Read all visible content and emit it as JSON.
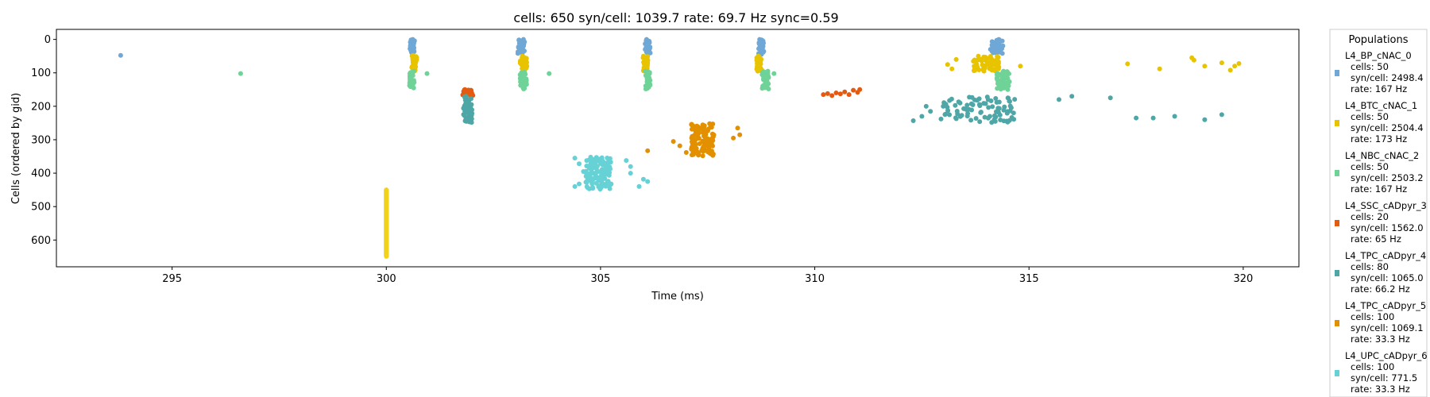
{
  "chart_data": {
    "type": "scatter",
    "title": "cells: 650   syn/cell: 1039.7   rate: 69.7 Hz    sync=0.59",
    "xlabel": "Time (ms)",
    "ylabel": "Cells (ordered by gid)",
    "xlim": [
      292.3,
      321.3
    ],
    "ylim": [
      680,
      -30
    ],
    "y_inverted": true,
    "xticks": [
      295,
      300,
      305,
      310,
      315,
      320
    ],
    "yticks": [
      0,
      100,
      200,
      300,
      400,
      500,
      600
    ],
    "grid": false,
    "legend": {
      "title": "Populations",
      "placement": "outside-right"
    },
    "series": [
      {
        "name": "L4_BP_cNAC_0",
        "color": "#6fa8d6",
        "gid_range": [
          0,
          49
        ],
        "stats": [
          "cells: 50",
          "syn/cell: 2498.4",
          "rate: 167 Hz"
        ],
        "clusters": [
          {
            "t": 300.6,
            "dt": 0.06,
            "y0": 0,
            "y1": 40,
            "n": 30
          },
          {
            "t": 303.15,
            "dt": 0.08,
            "y0": 0,
            "y1": 42,
            "n": 34
          },
          {
            "t": 306.1,
            "dt": 0.06,
            "y0": 0,
            "y1": 42,
            "n": 32
          },
          {
            "t": 308.75,
            "dt": 0.06,
            "y0": 0,
            "y1": 45,
            "n": 30
          },
          {
            "t": 314.25,
            "dt": 0.15,
            "y0": 0,
            "y1": 42,
            "n": 45
          }
        ],
        "points": [
          [
            293.8,
            48
          ]
        ]
      },
      {
        "name": "L4_BTC_cNAC_1",
        "color": "#e8c400",
        "gid_range": [
          50,
          99
        ],
        "stats": [
          "cells: 50",
          "syn/cell: 2504.4",
          "rate: 173 Hz"
        ],
        "clusters": [
          {
            "t": 300.65,
            "dt": 0.06,
            "y0": 48,
            "y1": 95,
            "n": 30
          },
          {
            "t": 303.2,
            "dt": 0.08,
            "y0": 50,
            "y1": 92,
            "n": 34
          },
          {
            "t": 306.05,
            "dt": 0.06,
            "y0": 50,
            "y1": 95,
            "n": 30
          },
          {
            "t": 308.7,
            "dt": 0.06,
            "y0": 50,
            "y1": 95,
            "n": 30
          },
          {
            "t": 314.0,
            "dt": 0.3,
            "y0": 50,
            "y1": 95,
            "n": 60
          }
        ],
        "points": [
          [
            313.1,
            75
          ],
          [
            313.3,
            60
          ],
          [
            313.2,
            88
          ],
          [
            314.8,
            80
          ],
          [
            317.3,
            73
          ],
          [
            318.05,
            88
          ],
          [
            318.8,
            55
          ],
          [
            318.85,
            62
          ],
          [
            319.1,
            80
          ],
          [
            319.5,
            70
          ],
          [
            319.7,
            92
          ],
          [
            319.8,
            80
          ],
          [
            319.9,
            72
          ]
        ]
      },
      {
        "name": "L4_NBC_cNAC_2",
        "color": "#6fd398",
        "gid_range": [
          100,
          149
        ],
        "stats": [
          "cells: 50",
          "syn/cell: 2503.2",
          "rate: 167 Hz"
        ],
        "clusters": [
          {
            "t": 300.6,
            "dt": 0.06,
            "y0": 95,
            "y1": 145,
            "n": 28
          },
          {
            "t": 303.2,
            "dt": 0.08,
            "y0": 98,
            "y1": 148,
            "n": 34
          },
          {
            "t": 306.1,
            "dt": 0.06,
            "y0": 95,
            "y1": 148,
            "n": 30
          },
          {
            "t": 308.85,
            "dt": 0.08,
            "y0": 95,
            "y1": 148,
            "n": 32
          },
          {
            "t": 314.4,
            "dt": 0.15,
            "y0": 95,
            "y1": 150,
            "n": 50
          }
        ],
        "points": [
          [
            296.6,
            102
          ],
          [
            300.95,
            102
          ],
          [
            303.8,
            102
          ],
          [
            309.05,
            102
          ]
        ]
      },
      {
        "name": "L4_SSC_cADpyr_3",
        "color": "#e45a10",
        "gid_range": [
          150,
          169
        ],
        "stats": [
          "cells: 20",
          "syn/cell: 1562.0",
          "rate: 65 Hz"
        ],
        "clusters": [
          {
            "t": 301.9,
            "dt": 0.12,
            "y0": 150,
            "y1": 168,
            "n": 28
          }
        ],
        "points": [
          [
            310.2,
            165
          ],
          [
            310.3,
            162
          ],
          [
            310.4,
            168
          ],
          [
            310.5,
            160
          ],
          [
            310.6,
            163
          ],
          [
            310.7,
            157
          ],
          [
            310.8,
            165
          ],
          [
            310.9,
            152
          ],
          [
            311.0,
            158
          ],
          [
            311.05,
            150
          ]
        ]
      },
      {
        "name": "L4_TPC_cADpyr_4",
        "color": "#4ea6a6",
        "gid_range": [
          170,
          249
        ],
        "stats": [
          "cells: 80",
          "syn/cell: 1065.0",
          "rate: 66.2 Hz"
        ],
        "clusters": [
          {
            "t": 301.9,
            "dt": 0.1,
            "y0": 170,
            "y1": 248,
            "n": 55
          },
          {
            "t": 313.8,
            "dt": 0.9,
            "y0": 172,
            "y1": 248,
            "n": 85
          }
        ],
        "points": [
          [
            312.3,
            243
          ],
          [
            312.5,
            230
          ],
          [
            312.7,
            215
          ],
          [
            312.6,
            200
          ],
          [
            315.7,
            180
          ],
          [
            316.0,
            170
          ],
          [
            316.9,
            175
          ],
          [
            317.5,
            235
          ],
          [
            317.9,
            235
          ],
          [
            318.4,
            230
          ],
          [
            319.1,
            240
          ],
          [
            319.5,
            225
          ]
        ]
      },
      {
        "name": "L4_TPC_cADpyr_5",
        "color": "#e39000",
        "gid_range": [
          250,
          349
        ],
        "stats": [
          "cells: 100",
          "syn/cell: 1069.1",
          "rate: 33.3 Hz"
        ],
        "clusters": [
          {
            "t": 307.4,
            "dt": 0.28,
            "y0": 252,
            "y1": 348,
            "n": 110
          }
        ],
        "points": [
          [
            306.1,
            333
          ],
          [
            306.7,
            305
          ],
          [
            306.85,
            318
          ],
          [
            307.0,
            338
          ],
          [
            308.1,
            295
          ],
          [
            308.2,
            265
          ],
          [
            308.25,
            285
          ]
        ]
      },
      {
        "name": "L4_UPC_cADpyr_6",
        "color": "#66d2d6",
        "gid_range": [
          350,
          449
        ],
        "stats": [
          "cells: 100",
          "syn/cell: 771.5",
          "rate: 33.3 Hz"
        ],
        "clusters": [
          {
            "t": 304.95,
            "dt": 0.3,
            "y0": 352,
            "y1": 448,
            "n": 110
          }
        ],
        "points": [
          [
            304.4,
            355
          ],
          [
            304.5,
            372
          ],
          [
            304.6,
            395
          ],
          [
            304.5,
            432
          ],
          [
            304.4,
            440
          ],
          [
            305.6,
            362
          ],
          [
            305.7,
            380
          ],
          [
            305.7,
            400
          ],
          [
            305.9,
            440
          ],
          [
            306.0,
            418
          ],
          [
            306.1,
            425
          ]
        ]
      },
      {
        "name": "",
        "color": "#f2d21c",
        "gid_range": [
          450,
          649
        ],
        "stats": [],
        "clusters": [
          {
            "t": 300.0,
            "dt": 0.0,
            "y0": 450,
            "y1": 649,
            "n": 200
          }
        ],
        "points": []
      }
    ]
  }
}
